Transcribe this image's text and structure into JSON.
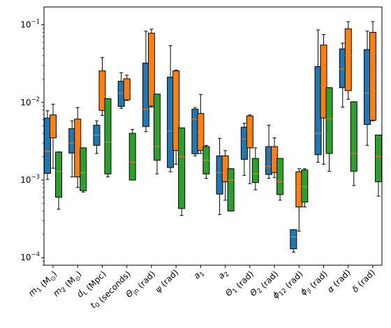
{
  "chart_data": {
    "type": "box",
    "yscale": "log",
    "ylim": [
      8e-05,
      0.17
    ],
    "y_ticks": [
      {
        "value": 0.1,
        "base": "10",
        "exp": "−1"
      },
      {
        "value": 0.01,
        "base": "10",
        "exp": "−2"
      },
      {
        "value": 0.001,
        "base": "10",
        "exp": "−3"
      },
      {
        "value": 0.0001,
        "base": "10",
        "exp": "−4"
      }
    ],
    "categories": [
      {
        "main": "m",
        "sub": "1",
        "rest": " (M",
        "sub2": "⊙",
        "tail": ")"
      },
      {
        "main": "m",
        "sub": "2",
        "rest": " (M",
        "sub2": "⊙",
        "tail": ")"
      },
      {
        "main": "d",
        "sub": "L",
        "rest": " (Mpc)",
        "sub2": "",
        "tail": ""
      },
      {
        "main": "t",
        "sub": "0",
        "rest": " (seconds)",
        "sub2": "",
        "tail": ""
      },
      {
        "main": "Θ",
        "sub": "jn",
        "rest": " (rad)",
        "sub2": "",
        "tail": ""
      },
      {
        "main": "ψ",
        "sub": "",
        "rest": " (rad)",
        "sub2": "",
        "tail": ""
      },
      {
        "main": "a",
        "sub": "1",
        "rest": "",
        "sub2": "",
        "tail": ""
      },
      {
        "main": "a",
        "sub": "2",
        "rest": "",
        "sub2": "",
        "tail": ""
      },
      {
        "main": "Θ",
        "sub": "1",
        "rest": " (rad)",
        "sub2": "",
        "tail": ""
      },
      {
        "main": "Θ",
        "sub": "2",
        "rest": " (rad)",
        "sub2": "",
        "tail": ""
      },
      {
        "main": "ϕ",
        "sub": "12",
        "rest": " (rad)",
        "sub2": "",
        "tail": ""
      },
      {
        "main": "ϕ",
        "sub": "jl",
        "rest": " (rad)",
        "sub2": "",
        "tail": ""
      },
      {
        "main": "α",
        "sub": "",
        "rest": " (rad)",
        "sub2": "",
        "tail": ""
      },
      {
        "main": "δ",
        "sub": "",
        "rest": " (rad)",
        "sub2": "",
        "tail": ""
      }
    ],
    "series_colors": [
      "#1f77b4",
      "#ff7f0e",
      "#2ca02c"
    ],
    "median_color": "#ff7f0e",
    "series": [
      {
        "boxes": [
          {
            "wlo": 0.00102,
            "q1": 0.00122,
            "med": 0.00235,
            "q3": 0.0063,
            "whi": 0.0078
          },
          {
            "wlo": 0.0011,
            "q1": 0.00223,
            "med": 0.003,
            "q3": 0.0046,
            "whi": 0.0058
          },
          {
            "wlo": 0.0022,
            "q1": 0.0028,
            "med": 0.0038,
            "q3": 0.0051,
            "whi": 0.0058
          },
          {
            "wlo": 0.0084,
            "q1": 0.0089,
            "med": 0.0132,
            "q3": 0.0188,
            "whi": 0.0242
          },
          {
            "wlo": 0.0042,
            "q1": 0.0049,
            "med": 0.0082,
            "q3": 0.0322,
            "whi": 0.083
          },
          {
            "wlo": 0.00128,
            "q1": 0.00145,
            "med": 0.0043,
            "q3": 0.0212,
            "whi": 0.054
          },
          {
            "wlo": 0.00205,
            "q1": 0.00218,
            "med": 0.0061,
            "q3": 0.0082,
            "whi": 0.0086
          },
          {
            "wlo": 0.00036,
            "q1": 0.00066,
            "med": 0.00125,
            "q3": 0.00205,
            "whi": 0.00345
          },
          {
            "wlo": 0.00115,
            "q1": 0.00185,
            "med": 0.0034,
            "q3": 0.0048,
            "whi": 0.0054
          },
          {
            "wlo": 0.00105,
            "q1": 0.00118,
            "med": 0.0015,
            "q3": 0.0027,
            "whi": 0.0051
          },
          {
            "wlo": 0.000118,
            "q1": 0.00013,
            "med": 0.000185,
            "q3": 0.00023,
            "whi": 0.00023
          },
          {
            "wlo": 0.0017,
            "q1": 0.00212,
            "med": 0.004,
            "q3": 0.029,
            "whi": 0.086
          },
          {
            "wlo": 0.0087,
            "q1": 0.0155,
            "med": 0.027,
            "q3": 0.049,
            "whi": 0.058
          },
          {
            "wlo": 0.0028,
            "q1": 0.0052,
            "med": 0.0132,
            "q3": 0.048,
            "whi": 0.083
          }
        ]
      },
      {
        "boxes": [
          {
            "wlo": 0.00142,
            "q1": 0.0035,
            "med": 0.0052,
            "q3": 0.0069,
            "whi": 0.0095
          },
          {
            "wlo": 0.0008,
            "q1": 0.0011,
            "med": 0.0021,
            "q3": 0.0061,
            "whi": 0.0086
          },
          {
            "wlo": 0.0068,
            "q1": 0.0079,
            "med": 0.012,
            "q3": 0.0255,
            "whi": 0.038
          },
          {
            "wlo": 0.0106,
            "q1": 0.0108,
            "med": 0.0138,
            "q3": 0.0202,
            "whi": 0.0225
          },
          {
            "wlo": 0.0087,
            "q1": 0.009,
            "med": 0.022,
            "q3": 0.078,
            "whi": 0.088
          },
          {
            "wlo": 0.0016,
            "q1": 0.0024,
            "med": 0.0055,
            "q3": 0.0255,
            "whi": 0.0262
          },
          {
            "wlo": 0.0022,
            "q1": 0.0024,
            "med": 0.0042,
            "q3": 0.0072,
            "whi": 0.0127
          },
          {
            "wlo": 0.00055,
            "q1": 0.00095,
            "med": 0.00125,
            "q3": 0.00205,
            "whi": 0.0024
          },
          {
            "wlo": 0.0009,
            "q1": 0.0026,
            "med": 0.0045,
            "q3": 0.0067,
            "whi": 0.0069
          },
          {
            "wlo": 0.00108,
            "q1": 0.00125,
            "med": 0.0017,
            "q3": 0.0027,
            "whi": 0.0035
          },
          {
            "wlo": 0.00022,
            "q1": 0.00045,
            "med": 0.00075,
            "q3": 0.00128,
            "whi": 0.0014
          },
          {
            "wlo": 0.0016,
            "q1": 0.0063,
            "med": 0.0165,
            "q3": 0.055,
            "whi": 0.075
          },
          {
            "wlo": 0.011,
            "q1": 0.0142,
            "med": 0.04,
            "q3": 0.089,
            "whi": 0.11
          },
          {
            "wlo": 0.0058,
            "q1": 0.0059,
            "med": 0.0245,
            "q3": 0.08,
            "whi": 0.11
          }
        ]
      },
      {
        "boxes": [
          {
            "wlo": 0.00042,
            "q1": 0.0006,
            "med": 0.0013,
            "q3": 0.0023,
            "whi": 0.0023
          },
          {
            "wlo": 0.0007,
            "q1": 0.00073,
            "med": 0.00125,
            "q3": 0.0026,
            "whi": 0.0026
          },
          {
            "wlo": 0.0011,
            "q1": 0.0012,
            "med": 0.0031,
            "q3": 0.0112,
            "whi": 0.0112
          },
          {
            "wlo": 0.001,
            "q1": 0.001,
            "med": 0.0017,
            "q3": 0.004,
            "whi": 0.0045
          },
          {
            "wlo": 0.0012,
            "q1": 0.0018,
            "med": 0.0027,
            "q3": 0.0128,
            "whi": 0.0128
          },
          {
            "wlo": 0.00035,
            "q1": 0.00043,
            "med": 0.002,
            "q3": 0.0047,
            "whi": 0.0047
          },
          {
            "wlo": 0.00105,
            "q1": 0.0012,
            "med": 0.0018,
            "q3": 0.0027,
            "whi": 0.0028
          },
          {
            "wlo": 0.0004,
            "q1": 0.0004,
            "med": 0.001,
            "q3": 0.0014,
            "whi": 0.0014
          },
          {
            "wlo": 0.00075,
            "q1": 0.00093,
            "med": 0.0012,
            "q3": 0.0019,
            "whi": 0.0026
          },
          {
            "wlo": 0.00055,
            "q1": 0.00065,
            "med": 0.00095,
            "q3": 0.0019,
            "whi": 0.0019
          },
          {
            "wlo": 0.00045,
            "q1": 0.00052,
            "med": 0.00082,
            "q3": 0.00135,
            "whi": 0.0014
          },
          {
            "wlo": 0.0013,
            "q1": 0.0022,
            "med": 0.0062,
            "q3": 0.0155,
            "whi": 0.0155
          },
          {
            "wlo": 0.00085,
            "q1": 0.0013,
            "med": 0.0022,
            "q3": 0.0102,
            "whi": 0.0102
          },
          {
            "wlo": 0.00062,
            "q1": 0.00095,
            "med": 0.002,
            "q3": 0.0038,
            "whi": 0.0038
          }
        ]
      }
    ]
  }
}
